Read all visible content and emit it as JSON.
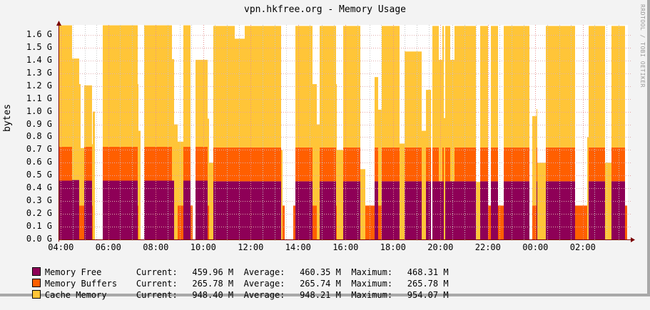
{
  "window": {
    "title": "vpn.hkfree.org - Memory Usage",
    "watermark": "RRDTOOL / TOBI OETIKER"
  },
  "chart_data": {
    "type": "area",
    "stacked": true,
    "title": "vpn.hkfree.org - Memory Usage",
    "xlabel": "",
    "ylabel": "bytes",
    "ylim": [
      0,
      1.68
    ],
    "y_unit": "G",
    "grid": true,
    "legend_position": "bottom",
    "y_ticks": [
      "0.0 G",
      "0.1 G",
      "0.2 G",
      "0.3 G",
      "0.4 G",
      "0.5 G",
      "0.6 G",
      "0.7 G",
      "0.8 G",
      "0.9 G",
      "1.0 G",
      "1.1 G",
      "1.2 G",
      "1.3 G",
      "1.4 G",
      "1.5 G",
      "1.6 G"
    ],
    "x_ticks": [
      "04:00",
      "06:00",
      "08:00",
      "10:00",
      "12:00",
      "14:00",
      "16:00",
      "18:00",
      "20:00",
      "22:00",
      "00:00",
      "02:00"
    ],
    "x_range_hours": [
      3.9,
      27.9
    ],
    "series": [
      {
        "name": "Memory Free",
        "color": "#8e0057"
      },
      {
        "name": "Memory Buffers",
        "color": "#ff5f00"
      },
      {
        "name": "Cache Memory",
        "color": "#ffc538"
      }
    ],
    "segments_note": "Each segment: [x_start_px, x_end_px, free_G, buffers_G, cache_G] read from plot pixels",
    "segments": [
      [
        82,
        83,
        0,
        0.265,
        0
      ],
      [
        83,
        101,
        0.46,
        0.265,
        0.95
      ],
      [
        101,
        111,
        0.465,
        0,
        0.95
      ],
      [
        111,
        113,
        0,
        0.265,
        0.95
      ],
      [
        113,
        118,
        0,
        0.265,
        0.45
      ],
      [
        118,
        129,
        0.46,
        0.265,
        0.48
      ],
      [
        129,
        130,
        0,
        0.265,
        0.48
      ],
      [
        130,
        133,
        0,
        0,
        1.0
      ],
      [
        133,
        144,
        0,
        0,
        0
      ],
      [
        144,
        193,
        0.46,
        0.265,
        0.95
      ],
      [
        193,
        194,
        0,
        0.265,
        0.95
      ],
      [
        194,
        197,
        0,
        0,
        0.85
      ],
      [
        197,
        202,
        0,
        0,
        0
      ],
      [
        202,
        241,
        0.46,
        0.265,
        0.95
      ],
      [
        241,
        244,
        0.46,
        0,
        0.95
      ],
      [
        244,
        249,
        0,
        0,
        0.9
      ],
      [
        249,
        257,
        0,
        0.265,
        0.5
      ],
      [
        257,
        257.5,
        0,
        0,
        0.75
      ],
      [
        257,
        267,
        0.46,
        0.265,
        0.95
      ],
      [
        267,
        270,
        0,
        0.265,
        0
      ],
      [
        270,
        274,
        0,
        0,
        0
      ],
      [
        274,
        291,
        0.46,
        0.265,
        0.68
      ],
      [
        291,
        293,
        0,
        0.265,
        0.68
      ],
      [
        293,
        299,
        0,
        0,
        0.6
      ],
      [
        299,
        329,
        0.455,
        0.265,
        0.95
      ],
      [
        329,
        343,
        0.455,
        0.265,
        0.85
      ],
      [
        343,
        394,
        0.455,
        0.265,
        0.95
      ],
      [
        394,
        396,
        0,
        0,
        0.7
      ],
      [
        396,
        399,
        0,
        0.265,
        0
      ],
      [
        399,
        411,
        0,
        0,
        0
      ],
      [
        411,
        414,
        0,
        0.265,
        0
      ],
      [
        414,
        438,
        0.455,
        0.265,
        0.95
      ],
      [
        438,
        444,
        0,
        0.265,
        0.95
      ],
      [
        444,
        448,
        0,
        0,
        0.9
      ],
      [
        448,
        471,
        0.455,
        0.265,
        0.95
      ],
      [
        471,
        472,
        0,
        0.265,
        0.95
      ],
      [
        472,
        481,
        0,
        0,
        0.7
      ],
      [
        481,
        505,
        0.455,
        0.265,
        0.95
      ],
      [
        505,
        512,
        0,
        0,
        0.55
      ],
      [
        512,
        525,
        0,
        0.265,
        0
      ],
      [
        525,
        530,
        0.455,
        0.265,
        0.55
      ],
      [
        530,
        535,
        0,
        0.265,
        0.75
      ],
      [
        535,
        560,
        0.455,
        0.265,
        0.95
      ],
      [
        560,
        567,
        0,
        0,
        0.75
      ],
      [
        567,
        591,
        0.455,
        0.265,
        0.75
      ],
      [
        591,
        597,
        0,
        0,
        0.85
      ],
      [
        597,
        604,
        0.455,
        0.265,
        0.45
      ],
      [
        604,
        606,
        0,
        0,
        0
      ],
      [
        606,
        615,
        0.455,
        0.265,
        0.95
      ],
      [
        615,
        620,
        0.455,
        0,
        0.95
      ],
      [
        620,
        622,
        0.455,
        0.265,
        0.95
      ],
      [
        622,
        624,
        0,
        0,
        0.95
      ],
      [
        624,
        631,
        0.455,
        0.265,
        0.95
      ],
      [
        631,
        637,
        0.455,
        0,
        0.95
      ],
      [
        637,
        667,
        0.455,
        0.265,
        0.95
      ],
      [
        667,
        673,
        0,
        0,
        0.45
      ],
      [
        673,
        684,
        0.455,
        0.265,
        0.95
      ],
      [
        684,
        688,
        0,
        0.265,
        0
      ],
      [
        688,
        698,
        0.455,
        0.265,
        0.95
      ],
      [
        698,
        706,
        0,
        0.265,
        0
      ],
      [
        706,
        742,
        0.455,
        0.265,
        0.95
      ],
      [
        742,
        746,
        0,
        0,
        0
      ],
      [
        746,
        752,
        0,
        0.265,
        0.7
      ],
      [
        752,
        753,
        0.455,
        0.265,
        0.3
      ],
      [
        753,
        765,
        0,
        0,
        0.6
      ],
      [
        765,
        806,
        0.455,
        0.265,
        0.95
      ],
      [
        806,
        823,
        0,
        0.265,
        0
      ],
      [
        823,
        825,
        0,
        0,
        0.8
      ],
      [
        825,
        848,
        0.455,
        0.265,
        0.95
      ],
      [
        848,
        857,
        0,
        0,
        0.6
      ],
      [
        857,
        876,
        0.455,
        0.265,
        0.95
      ],
      [
        876,
        879,
        0,
        0.265,
        0
      ]
    ],
    "legend": [
      {
        "name": "Memory Free",
        "current": "459.96 M",
        "average": "460.35 M",
        "maximum": "468.31 M"
      },
      {
        "name": "Memory Buffers",
        "current": "265.78 M",
        "average": "265.74 M",
        "maximum": "265.78 M"
      },
      {
        "name": "Cache Memory",
        "current": "948.40 M",
        "average": "948.21 M",
        "maximum": "954.07 M"
      }
    ]
  },
  "legend_labels": {
    "current": "Current:",
    "average": "Average:",
    "maximum": "Maximum:"
  }
}
